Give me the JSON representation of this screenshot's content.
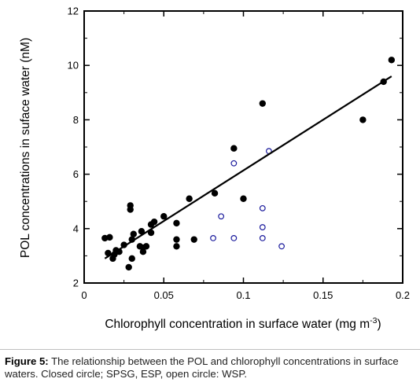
{
  "chart_data": {
    "type": "scatter",
    "xlabel": "Chlorophyll concentration in surface water (mg m",
    "xlabel_sup": "-3",
    "xlabel_end": ")",
    "ylabel": "POL concentrations in suface water (nM)",
    "xlim": [
      0,
      0.2
    ],
    "ylim": [
      2,
      12
    ],
    "xticks": [
      0,
      0.05,
      0.1,
      0.15,
      0.2
    ],
    "xtick_labels": [
      "0",
      "0.05",
      "0.1",
      "0.15",
      "0.2"
    ],
    "yticks": [
      2,
      4,
      6,
      8,
      10,
      12
    ],
    "ytick_labels": [
      "2",
      "4",
      "6",
      "8",
      "10",
      "12"
    ],
    "grid": false,
    "legend": "none",
    "series": [
      {
        "marker": "filled-circle",
        "color": "#000000",
        "points": [
          [
            0.013,
            3.65
          ],
          [
            0.016,
            3.68
          ],
          [
            0.015,
            3.1
          ],
          [
            0.018,
            2.9
          ],
          [
            0.02,
            3.2
          ],
          [
            0.019,
            3.05
          ],
          [
            0.022,
            3.15
          ],
          [
            0.025,
            3.4
          ],
          [
            0.028,
            2.58
          ],
          [
            0.029,
            4.85
          ],
          [
            0.029,
            4.7
          ],
          [
            0.03,
            3.6
          ],
          [
            0.03,
            2.9
          ],
          [
            0.031,
            3.8
          ],
          [
            0.035,
            3.35
          ],
          [
            0.036,
            3.9
          ],
          [
            0.037,
            3.3
          ],
          [
            0.037,
            3.15
          ],
          [
            0.039,
            3.35
          ],
          [
            0.042,
            4.15
          ],
          [
            0.042,
            3.85
          ],
          [
            0.044,
            4.25
          ],
          [
            0.05,
            4.45
          ],
          [
            0.058,
            4.2
          ],
          [
            0.058,
            3.6
          ],
          [
            0.058,
            3.35
          ],
          [
            0.066,
            5.1
          ],
          [
            0.069,
            3.6
          ],
          [
            0.082,
            5.3
          ],
          [
            0.094,
            6.95
          ],
          [
            0.1,
            5.1
          ],
          [
            0.112,
            8.6
          ],
          [
            0.175,
            8.0
          ],
          [
            0.188,
            9.4
          ],
          [
            0.193,
            10.2
          ]
        ]
      },
      {
        "marker": "open-circle",
        "color": "#1a1a9c",
        "points": [
          [
            0.081,
            3.65
          ],
          [
            0.086,
            4.45
          ],
          [
            0.094,
            6.4
          ],
          [
            0.094,
            3.65
          ],
          [
            0.112,
            4.75
          ],
          [
            0.112,
            4.05
          ],
          [
            0.112,
            3.65
          ],
          [
            0.116,
            6.85
          ],
          [
            0.124,
            3.35
          ]
        ]
      }
    ],
    "regression_line": {
      "x": [
        0.013,
        0.193
      ],
      "y": [
        2.9,
        9.6
      ]
    }
  },
  "caption": {
    "label": "Figure 5:",
    "text": " The relationship between the POL and chlorophyll concentrations in surface waters. Closed circle; SPSG, ESP, open circle: WSP."
  }
}
